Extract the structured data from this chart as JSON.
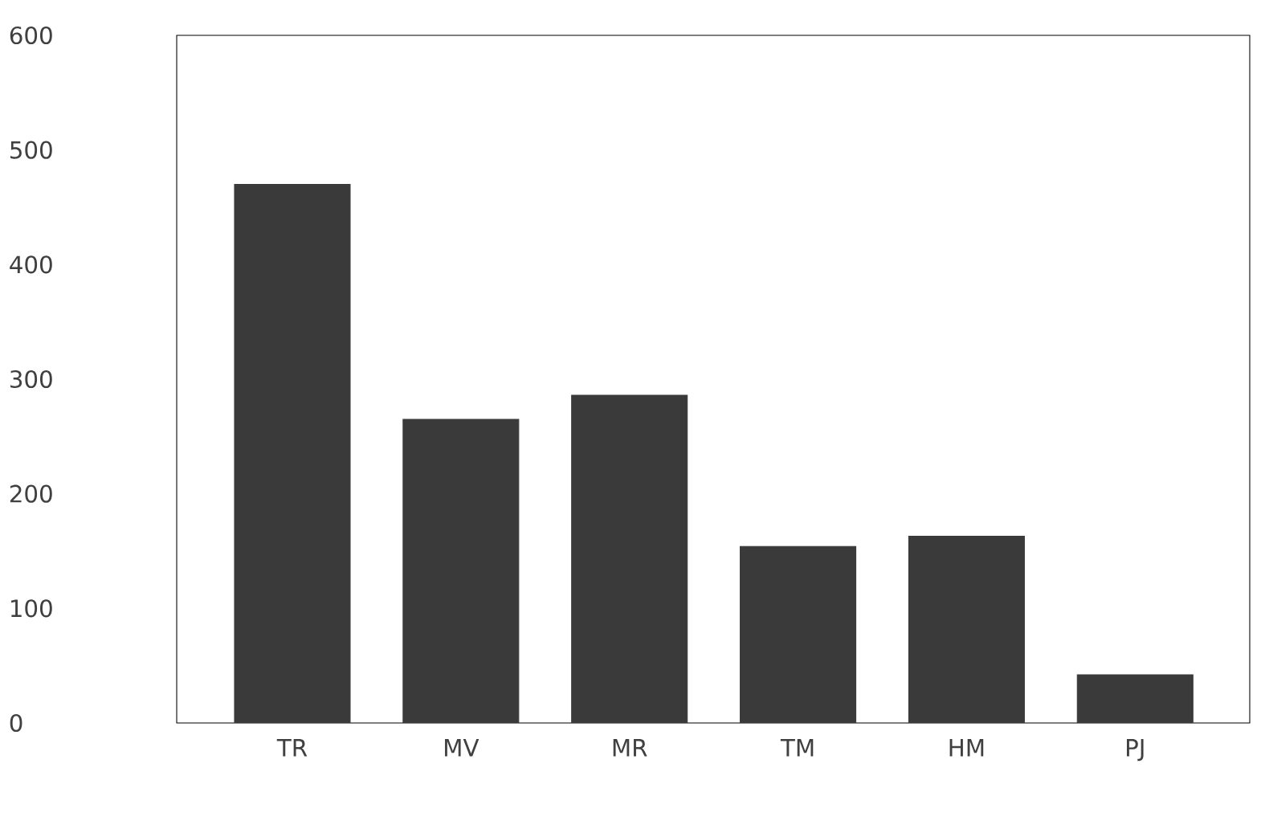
{
  "chart_data": {
    "type": "bar",
    "categories": [
      "TR",
      "MV",
      "MR",
      "TM",
      "HM",
      "PJ"
    ],
    "values": [
      470,
      265,
      286,
      154,
      163,
      42
    ],
    "color": "#3a3a3a",
    "ylim": [
      0,
      600
    ],
    "yticks": [
      0,
      100,
      200,
      300,
      400,
      500,
      600
    ],
    "grid": false
  }
}
